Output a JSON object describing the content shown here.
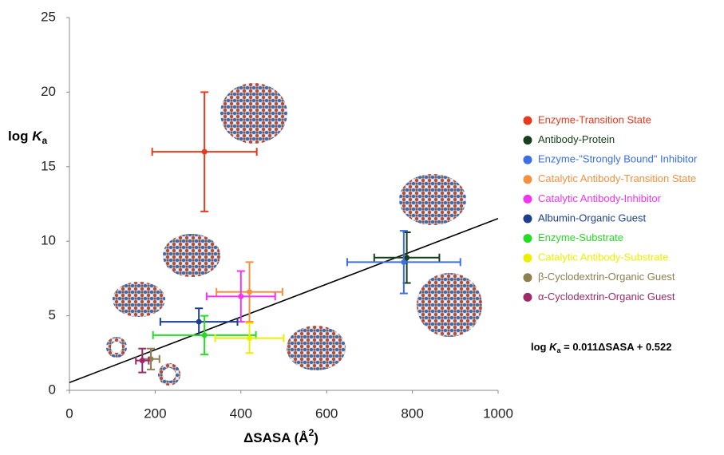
{
  "chart_data": {
    "type": "scatter",
    "xlabel": {
      "text": "ΔSASA (Å",
      "sup": "2",
      "end": ")"
    },
    "ylabel": {
      "text": "log ",
      "italic": "K",
      "sub": "a"
    },
    "xlim": [
      0,
      1000
    ],
    "xticks": [
      0,
      200,
      400,
      600,
      800,
      1000
    ],
    "ylim": [
      0,
      25
    ],
    "yticks": [
      0,
      5,
      10,
      15,
      20,
      25
    ],
    "grid": false,
    "legend": "right",
    "series": [
      {
        "name": "Enzyme-Transition State",
        "color": "#e8391c",
        "x": [
          315
        ],
        "values": [
          16.0
        ],
        "xerr": [
          122
        ],
        "yerr": [
          4.0
        ]
      },
      {
        "name": "Antibody-Protein",
        "color": "#17401a",
        "x": [
          787
        ],
        "values": [
          8.9
        ],
        "xerr": [
          76
        ],
        "yerr": [
          1.7
        ]
      },
      {
        "name": "Enzyme-\"Strongly Bound\" Inhibitor",
        "color": "#3a6fe6",
        "x": [
          780
        ],
        "values": [
          8.6
        ],
        "xerr": [
          132
        ],
        "yerr": [
          2.1
        ]
      },
      {
        "name": "Catalytic Antibody-Transition State",
        "color": "#f5903f",
        "x": [
          420
        ],
        "values": [
          6.6
        ],
        "xerr": [
          77
        ],
        "yerr": [
          2.0
        ]
      },
      {
        "name": "Catalytic Antibody-Inhibitor",
        "color": "#f035f0",
        "x": [
          400
        ],
        "values": [
          6.3
        ],
        "xerr": [
          80
        ],
        "yerr": [
          1.7
        ]
      },
      {
        "name": "Albumin-Organic Guest",
        "color": "#1c3f8c",
        "x": [
          302
        ],
        "values": [
          4.6
        ],
        "xerr": [
          90
        ],
        "yerr": [
          0.9
        ]
      },
      {
        "name": "Enzyme-Substrate",
        "color": "#22dd22",
        "x": [
          315
        ],
        "values": [
          3.7
        ],
        "xerr": [
          120
        ],
        "yerr": [
          1.3
        ]
      },
      {
        "name": "Catalytic Antibody-Substrate",
        "color": "#eeee00",
        "x": [
          420
        ],
        "values": [
          3.5
        ],
        "xerr": [
          80
        ],
        "yerr": [
          1.0
        ]
      },
      {
        "name": "β-Cyclodextrin-Organic Guest",
        "color": "#8c8050",
        "x": [
          190
        ],
        "values": [
          2.1
        ],
        "xerr": [
          20
        ],
        "yerr": [
          0.7
        ]
      },
      {
        "name": "α-Cyclodextrin-Organic Guest",
        "color": "#a0286a",
        "x": [
          170
        ],
        "values": [
          2.0
        ],
        "xerr": [
          15
        ],
        "yerr": [
          0.8
        ]
      }
    ],
    "fit": {
      "slope": 0.011,
      "intercept": 0.522
    },
    "annotation": {
      "text": "log ",
      "italic": "K",
      "sub": "a",
      "end": " = 0.011ΔSASA + 0.522"
    }
  }
}
